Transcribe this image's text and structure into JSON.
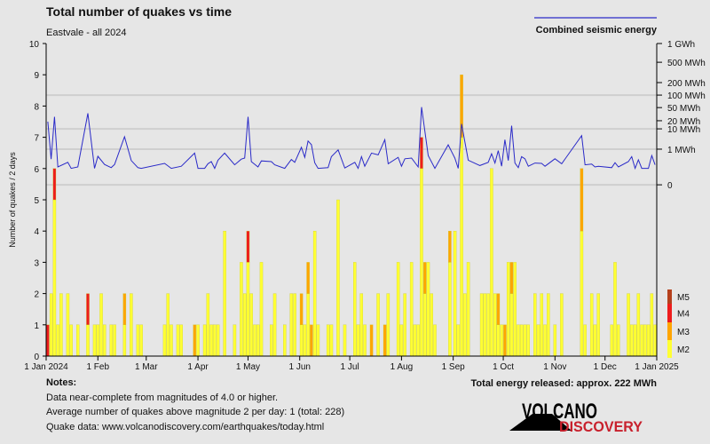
{
  "title": "Total number of quakes vs time",
  "subtitle": "Eastvale - all 2024",
  "energy_legend_label": "Combined seismic energy",
  "notes": {
    "heading": "Notes:",
    "lines": [
      "Data near-complete from magnitudes of 4.0 or higher.",
      "Average number of quakes above magnitude 2 per day: 1 (total: 228)",
      "Quake data: www.volcanodiscovery.com/earthquakes/today.html"
    ]
  },
  "total_energy": "Total energy released: approx. 222 MWh",
  "logo": {
    "line1": "VOLCANO",
    "line2": "DISCOVERY"
  },
  "chart_data": {
    "type": "bar",
    "ylabel": "Number of quakes / 2 days",
    "ylim": [
      0,
      10
    ],
    "yticks": [
      "0",
      "1",
      "2",
      "3",
      "4",
      "5",
      "6",
      "7",
      "8",
      "9",
      "10"
    ],
    "xlim": [
      "2024-01-01",
      "2025-01-01"
    ],
    "xticks": [
      {
        "date": "2024-01-01",
        "label": "1 Jan 2024"
      },
      {
        "date": "2024-02-01",
        "label": "1 Feb"
      },
      {
        "date": "2024-03-01",
        "label": "1 Mar"
      },
      {
        "date": "2024-04-01",
        "label": "1 Apr"
      },
      {
        "date": "2024-05-01",
        "label": "1 May"
      },
      {
        "date": "2024-06-01",
        "label": "1 Jun"
      },
      {
        "date": "2024-07-01",
        "label": "1 Jul"
      },
      {
        "date": "2024-08-01",
        "label": "1 Aug"
      },
      {
        "date": "2024-09-01",
        "label": "1 Sep"
      },
      {
        "date": "2024-10-01",
        "label": "1 Oct"
      },
      {
        "date": "2024-11-01",
        "label": "1 Nov"
      },
      {
        "date": "2024-12-01",
        "label": "1 Dec"
      },
      {
        "date": "2025-01-01",
        "label": "1 Jan 2025"
      }
    ],
    "bin_days": 2,
    "magnitude_classes": [
      {
        "name": "M2",
        "color": "#ffff33"
      },
      {
        "name": "M3",
        "color": "#ffa500"
      },
      {
        "name": "M4",
        "color": "#ee1c1c"
      },
      {
        "name": "M5",
        "color": "#b5401c"
      }
    ],
    "bar_fields": [
      "bin_start",
      "M2",
      "M3",
      "M4"
    ],
    "bars": [
      [
        "2024-01-01",
        0,
        0,
        1
      ],
      [
        "2024-01-03",
        2,
        0,
        0
      ],
      [
        "2024-01-05",
        5,
        0,
        1
      ],
      [
        "2024-01-07",
        1,
        0,
        0
      ],
      [
        "2024-01-09",
        2,
        0,
        0
      ],
      [
        "2024-01-13",
        2,
        0,
        0
      ],
      [
        "2024-01-15",
        1,
        0,
        0
      ],
      [
        "2024-01-19",
        1,
        0,
        0
      ],
      [
        "2024-01-25",
        1,
        0,
        1
      ],
      [
        "2024-01-29",
        1,
        0,
        0
      ],
      [
        "2024-01-31",
        1,
        0,
        0
      ],
      [
        "2024-02-02",
        2,
        0,
        0
      ],
      [
        "2024-02-04",
        1,
        0,
        0
      ],
      [
        "2024-02-08",
        1,
        0,
        0
      ],
      [
        "2024-02-10",
        1,
        0,
        0
      ],
      [
        "2024-02-16",
        1,
        1,
        0
      ],
      [
        "2024-02-20",
        2,
        0,
        0
      ],
      [
        "2024-02-24",
        1,
        0,
        0
      ],
      [
        "2024-02-26",
        1,
        0,
        0
      ],
      [
        "2024-03-11",
        1,
        0,
        0
      ],
      [
        "2024-03-13",
        2,
        0,
        0
      ],
      [
        "2024-03-15",
        1,
        0,
        0
      ],
      [
        "2024-03-19",
        1,
        0,
        0
      ],
      [
        "2024-03-21",
        1,
        0,
        0
      ],
      [
        "2024-03-29",
        0,
        1,
        0
      ],
      [
        "2024-03-31",
        1,
        0,
        0
      ],
      [
        "2024-04-04",
        1,
        0,
        0
      ],
      [
        "2024-04-06",
        2,
        0,
        0
      ],
      [
        "2024-04-08",
        1,
        0,
        0
      ],
      [
        "2024-04-10",
        1,
        0,
        0
      ],
      [
        "2024-04-12",
        1,
        0,
        0
      ],
      [
        "2024-04-16",
        4,
        0,
        0
      ],
      [
        "2024-04-22",
        1,
        0,
        0
      ],
      [
        "2024-04-26",
        3,
        0,
        0
      ],
      [
        "2024-04-28",
        2,
        0,
        0
      ],
      [
        "2024-04-30",
        3,
        0,
        1
      ],
      [
        "2024-05-02",
        2,
        0,
        0
      ],
      [
        "2024-05-04",
        1,
        0,
        0
      ],
      [
        "2024-05-06",
        1,
        0,
        0
      ],
      [
        "2024-05-08",
        3,
        0,
        0
      ],
      [
        "2024-05-14",
        1,
        0,
        0
      ],
      [
        "2024-05-16",
        2,
        0,
        0
      ],
      [
        "2024-05-22",
        1,
        0,
        0
      ],
      [
        "2024-05-26",
        2,
        0,
        0
      ],
      [
        "2024-05-28",
        2,
        0,
        0
      ],
      [
        "2024-06-01",
        1,
        1,
        0
      ],
      [
        "2024-06-03",
        1,
        0,
        0
      ],
      [
        "2024-06-05",
        2,
        1,
        0
      ],
      [
        "2024-06-07",
        0,
        1,
        0
      ],
      [
        "2024-06-09",
        4,
        0,
        0
      ],
      [
        "2024-06-11",
        1,
        0,
        0
      ],
      [
        "2024-06-17",
        1,
        0,
        0
      ],
      [
        "2024-06-19",
        1,
        0,
        0
      ],
      [
        "2024-06-23",
        5,
        0,
        0
      ],
      [
        "2024-06-27",
        1,
        0,
        0
      ],
      [
        "2024-07-03",
        3,
        0,
        0
      ],
      [
        "2024-07-05",
        1,
        0,
        0
      ],
      [
        "2024-07-07",
        2,
        0,
        0
      ],
      [
        "2024-07-09",
        1,
        0,
        0
      ],
      [
        "2024-07-13",
        0,
        1,
        0
      ],
      [
        "2024-07-17",
        2,
        0,
        0
      ],
      [
        "2024-07-21",
        0,
        1,
        0
      ],
      [
        "2024-07-23",
        2,
        0,
        0
      ],
      [
        "2024-07-29",
        3,
        0,
        0
      ],
      [
        "2024-07-31",
        1,
        0,
        0
      ],
      [
        "2024-08-02",
        2,
        0,
        0
      ],
      [
        "2024-08-06",
        3,
        0,
        0
      ],
      [
        "2024-08-08",
        1,
        0,
        0
      ],
      [
        "2024-08-10",
        1,
        0,
        0
      ],
      [
        "2024-08-12",
        6,
        0,
        1
      ],
      [
        "2024-08-14",
        2,
        1,
        0
      ],
      [
        "2024-08-16",
        3,
        0,
        0
      ],
      [
        "2024-08-18",
        2,
        0,
        0
      ],
      [
        "2024-08-20",
        1,
        0,
        0
      ],
      [
        "2024-08-29",
        3,
        1,
        0
      ],
      [
        "2024-09-01",
        4,
        0,
        0
      ],
      [
        "2024-09-03",
        1,
        0,
        0
      ],
      [
        "2024-09-05",
        7,
        2,
        0
      ],
      [
        "2024-09-07",
        2,
        0,
        0
      ],
      [
        "2024-09-09",
        3,
        0,
        0
      ],
      [
        "2024-09-17",
        2,
        0,
        0
      ],
      [
        "2024-09-19",
        2,
        0,
        0
      ],
      [
        "2024-09-21",
        2,
        0,
        0
      ],
      [
        "2024-09-23",
        6,
        0,
        0
      ],
      [
        "2024-09-25",
        2,
        0,
        0
      ],
      [
        "2024-09-27",
        1,
        1,
        0
      ],
      [
        "2024-09-29",
        1,
        0,
        0
      ],
      [
        "2024-10-01",
        0,
        1,
        0
      ],
      [
        "2024-10-03",
        3,
        0,
        0
      ],
      [
        "2024-10-05",
        2,
        1,
        0
      ],
      [
        "2024-10-07",
        3,
        0,
        0
      ],
      [
        "2024-10-09",
        1,
        0,
        0
      ],
      [
        "2024-10-11",
        1,
        0,
        0
      ],
      [
        "2024-10-13",
        1,
        0,
        0
      ],
      [
        "2024-10-15",
        1,
        0,
        0
      ],
      [
        "2024-10-19",
        2,
        0,
        0
      ],
      [
        "2024-10-21",
        1,
        0,
        0
      ],
      [
        "2024-10-23",
        2,
        0,
        0
      ],
      [
        "2024-10-25",
        1,
        0,
        0
      ],
      [
        "2024-10-27",
        2,
        0,
        0
      ],
      [
        "2024-10-31",
        1,
        0,
        0
      ],
      [
        "2024-11-04",
        2,
        0,
        0
      ],
      [
        "2024-11-16",
        4,
        2,
        0
      ],
      [
        "2024-11-18",
        1,
        0,
        0
      ],
      [
        "2024-11-22",
        2,
        0,
        0
      ],
      [
        "2024-11-24",
        1,
        0,
        0
      ],
      [
        "2024-11-26",
        2,
        0,
        0
      ],
      [
        "2024-12-04",
        1,
        0,
        0
      ],
      [
        "2024-12-06",
        3,
        0,
        0
      ],
      [
        "2024-12-08",
        1,
        0,
        0
      ],
      [
        "2024-12-14",
        2,
        0,
        0
      ],
      [
        "2024-12-16",
        1,
        0,
        0
      ],
      [
        "2024-12-18",
        1,
        0,
        0
      ],
      [
        "2024-12-20",
        2,
        0,
        0
      ],
      [
        "2024-12-22",
        1,
        0,
        0
      ],
      [
        "2024-12-24",
        1,
        0,
        0
      ],
      [
        "2024-12-26",
        1,
        0,
        0
      ],
      [
        "2024-12-28",
        2,
        0,
        0
      ],
      [
        "2024-12-30",
        1,
        0,
        0
      ]
    ],
    "energy": {
      "name": "Combined seismic energy",
      "color": "#2a2ac8",
      "unit": "MWh",
      "right_ticks": [
        {
          "value": 1000,
          "label": "1 GWh"
        },
        {
          "value": 500,
          "label": "500 MWh"
        },
        {
          "value": 200,
          "label": "200 MWh"
        },
        {
          "value": 100,
          "label": "100 MWh"
        },
        {
          "value": 50,
          "label": "50 MWh"
        },
        {
          "value": 20,
          "label": "20 MWh"
        },
        {
          "value": 10,
          "label": "10 MWh"
        },
        {
          "value": 1,
          "label": "1 MWh"
        },
        {
          "value": 0,
          "label": "0"
        }
      ],
      "gridlines_at": [
        100,
        10,
        1,
        0
      ],
      "points": [
        [
          "2024-01-02",
          18.8
        ],
        [
          "2024-01-04",
          0.72
        ],
        [
          "2024-01-06",
          29
        ],
        [
          "2024-01-08",
          0.5
        ],
        [
          "2024-01-14",
          0.63
        ],
        [
          "2024-01-16",
          0.46
        ],
        [
          "2024-01-20",
          0.5
        ],
        [
          "2024-01-26",
          37
        ],
        [
          "2024-01-30",
          0.46
        ],
        [
          "2024-02-01",
          0.8
        ],
        [
          "2024-02-05",
          0.57
        ],
        [
          "2024-02-09",
          0.48
        ],
        [
          "2024-02-11",
          0.57
        ],
        [
          "2024-02-17",
          6.5
        ],
        [
          "2024-02-21",
          0.68
        ],
        [
          "2024-02-25",
          0.48
        ],
        [
          "2024-02-27",
          0.46
        ],
        [
          "2024-03-12",
          0.6
        ],
        [
          "2024-03-16",
          0.46
        ],
        [
          "2024-03-22",
          0.52
        ],
        [
          "2024-03-30",
          0.89
        ],
        [
          "2024-04-01",
          0.46
        ],
        [
          "2024-04-05",
          0.46
        ],
        [
          "2024-04-07",
          0.59
        ],
        [
          "2024-04-09",
          0.65
        ],
        [
          "2024-04-11",
          0.46
        ],
        [
          "2024-04-13",
          0.69
        ],
        [
          "2024-04-17",
          0.89
        ],
        [
          "2024-04-23",
          0.56
        ],
        [
          "2024-04-27",
          0.72
        ],
        [
          "2024-04-29",
          0.75
        ],
        [
          "2024-05-01",
          29
        ],
        [
          "2024-05-03",
          0.65
        ],
        [
          "2024-05-07",
          0.5
        ],
        [
          "2024-05-09",
          0.67
        ],
        [
          "2024-05-15",
          0.65
        ],
        [
          "2024-05-17",
          0.56
        ],
        [
          "2024-05-23",
          0.46
        ],
        [
          "2024-05-27",
          0.71
        ],
        [
          "2024-05-29",
          0.63
        ],
        [
          "2024-06-02",
          1.8
        ],
        [
          "2024-06-04",
          0.77
        ],
        [
          "2024-06-06",
          4.6
        ],
        [
          "2024-06-08",
          3
        ],
        [
          "2024-06-10",
          0.62
        ],
        [
          "2024-06-12",
          0.46
        ],
        [
          "2024-06-18",
          0.48
        ],
        [
          "2024-06-20",
          0.79
        ],
        [
          "2024-06-24",
          0.98
        ],
        [
          "2024-06-28",
          0.47
        ],
        [
          "2024-07-04",
          0.63
        ],
        [
          "2024-07-06",
          0.46
        ],
        [
          "2024-07-08",
          0.79
        ],
        [
          "2024-07-10",
          0.52
        ],
        [
          "2024-07-14",
          0.89
        ],
        [
          "2024-07-18",
          0.84
        ],
        [
          "2024-07-22",
          5.2
        ],
        [
          "2024-07-24",
          0.59
        ],
        [
          "2024-07-30",
          0.77
        ],
        [
          "2024-08-01",
          0.52
        ],
        [
          "2024-08-03",
          0.73
        ],
        [
          "2024-08-07",
          0.75
        ],
        [
          "2024-08-11",
          0.5
        ],
        [
          "2024-08-13",
          52
        ],
        [
          "2024-08-17",
          0.82
        ],
        [
          "2024-08-21",
          0.46
        ],
        [
          "2024-08-29",
          2.9
        ],
        [
          "2024-09-02",
          0.75
        ],
        [
          "2024-09-04",
          0.46
        ],
        [
          "2024-09-06",
          16
        ],
        [
          "2024-09-10",
          0.69
        ],
        [
          "2024-09-17",
          0.54
        ],
        [
          "2024-09-22",
          0.63
        ],
        [
          "2024-09-24",
          0.87
        ],
        [
          "2024-09-26",
          0.61
        ],
        [
          "2024-09-28",
          0.96
        ],
        [
          "2024-09-30",
          0.52
        ],
        [
          "2024-10-02",
          5.2
        ],
        [
          "2024-10-04",
          0.68
        ],
        [
          "2024-10-06",
          13.8
        ],
        [
          "2024-10-08",
          0.61
        ],
        [
          "2024-10-10",
          0.48
        ],
        [
          "2024-10-12",
          0.79
        ],
        [
          "2024-10-14",
          0.73
        ],
        [
          "2024-10-16",
          0.52
        ],
        [
          "2024-10-20",
          0.61
        ],
        [
          "2024-10-24",
          0.6
        ],
        [
          "2024-10-26",
          0.52
        ],
        [
          "2024-11-01",
          0.73
        ],
        [
          "2024-11-05",
          0.59
        ],
        [
          "2024-11-17",
          7
        ],
        [
          "2024-11-19",
          0.56
        ],
        [
          "2024-11-23",
          0.58
        ],
        [
          "2024-11-25",
          0.5
        ],
        [
          "2024-11-27",
          0.52
        ],
        [
          "2024-12-05",
          0.48
        ],
        [
          "2024-12-07",
          0.62
        ],
        [
          "2024-12-09",
          0.5
        ],
        [
          "2024-12-15",
          0.65
        ],
        [
          "2024-12-17",
          0.79
        ],
        [
          "2024-12-19",
          0.46
        ],
        [
          "2024-12-21",
          0.7
        ],
        [
          "2024-12-23",
          0.46
        ],
        [
          "2024-12-27",
          0.46
        ],
        [
          "2024-12-29",
          0.82
        ],
        [
          "2024-12-31",
          0.56
        ]
      ]
    }
  }
}
